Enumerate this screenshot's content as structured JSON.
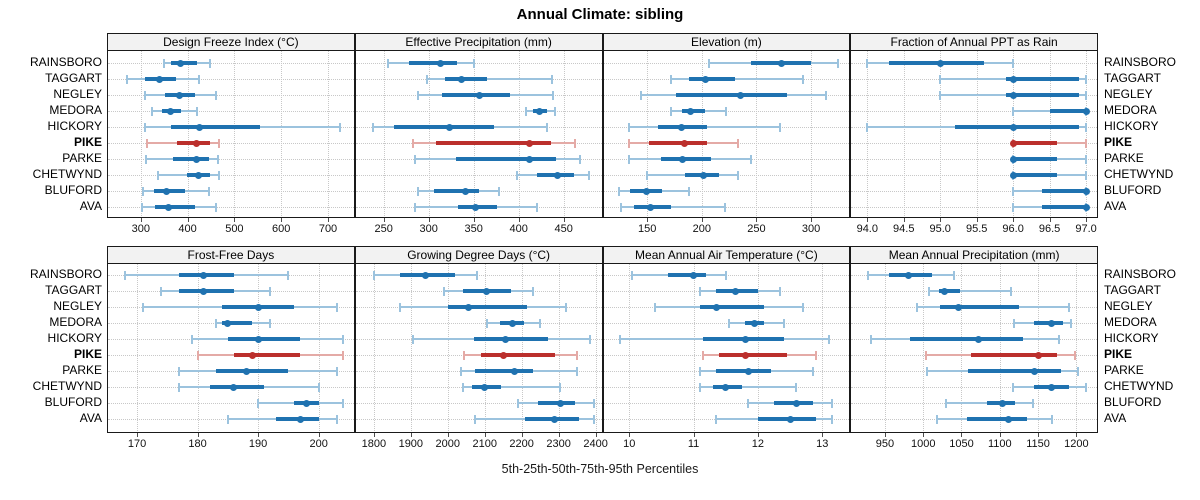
{
  "title": "Annual Climate: sibling",
  "caption": "5th-25th-50th-75th-95th Percentiles",
  "colors": {
    "normal": "#1f72b0",
    "normal_light": "#9cc3de",
    "highlight": "#bb2f2c",
    "highlight_light": "#e4aaa6",
    "panel_border": "#1a1a1a",
    "header_bg": "#f2f2f2",
    "gridline": "#c8c8c8",
    "tick": "#4d4d4d"
  },
  "chart_data": {
    "type": "errorbar",
    "orientation": "horizontal",
    "percentile_labels": [
      "5th",
      "25th",
      "50th",
      "75th",
      "95th"
    ],
    "sites": [
      "RAINSBORO",
      "TAGGART",
      "NEGLEY",
      "MEDORA",
      "HICKORY",
      "PIKE",
      "PARKE",
      "CHETWYND",
      "BLUFORD",
      "AVA"
    ],
    "highlight_site": "PIKE",
    "panels": [
      {
        "title": "Design Freeze Index (°C)",
        "xlim": [
          230,
          755
        ],
        "ticks": [
          300,
          400,
          500,
          600,
          700
        ],
        "tick_labels": [
          "300",
          "400",
          "500",
          "600",
          "700"
        ],
        "series": [
          [
            350,
            365,
            385,
            420,
            447
          ],
          [
            270,
            310,
            340,
            375,
            425
          ],
          [
            310,
            352,
            383,
            415,
            460
          ],
          [
            325,
            345,
            363,
            387,
            420
          ],
          [
            310,
            365,
            425,
            555,
            725
          ],
          [
            313,
            378,
            420,
            448,
            468
          ],
          [
            312,
            368,
            420,
            446,
            466
          ],
          [
            337,
            398,
            424,
            448,
            467
          ],
          [
            305,
            328,
            355,
            395,
            445
          ],
          [
            303,
            330,
            360,
            415,
            460
          ]
        ]
      },
      {
        "title": "Effective Precipitation (mm)",
        "xlim": [
          219,
          492
        ],
        "ticks": [
          250,
          300,
          350,
          400,
          450
        ],
        "tick_labels": [
          "250",
          "300",
          "350",
          "400",
          "450"
        ],
        "series": [
          [
            255,
            278,
            313,
            331,
            350
          ],
          [
            298,
            318,
            336,
            365,
            437
          ],
          [
            288,
            315,
            356,
            390,
            438
          ],
          [
            408,
            416,
            423,
            431,
            440
          ],
          [
            238,
            262,
            323,
            373,
            432
          ],
          [
            283,
            308,
            412,
            436,
            463
          ],
          [
            285,
            330,
            412,
            441,
            468
          ],
          [
            398,
            420,
            443,
            461,
            478
          ],
          [
            288,
            306,
            341,
            356,
            378
          ],
          [
            285,
            333,
            352,
            376,
            420
          ]
        ]
      },
      {
        "title": "Elevation (m)",
        "xlim": [
          110,
          335
        ],
        "ticks": [
          150,
          200,
          250,
          300
        ],
        "tick_labels": [
          "150",
          "200",
          "250",
          "300"
        ],
        "series": [
          [
            207,
            245,
            273,
            300,
            325
          ],
          [
            172,
            188,
            203,
            230,
            293
          ],
          [
            144,
            176,
            235,
            278,
            314
          ],
          [
            172,
            182,
            190,
            203,
            222
          ],
          [
            133,
            160,
            181,
            205,
            272
          ],
          [
            133,
            152,
            184,
            205,
            233
          ],
          [
            133,
            163,
            182,
            208,
            245
          ],
          [
            150,
            185,
            202,
            216,
            233
          ],
          [
            124,
            134,
            149,
            164,
            188
          ],
          [
            126,
            138,
            153,
            172,
            221
          ]
        ]
      },
      {
        "title": "Fraction of Annual PPT as Rain",
        "xlim": [
          93.78,
          97.15
        ],
        "ticks": [
          94.0,
          94.5,
          95.0,
          95.5,
          96.0,
          96.5,
          97.0
        ],
        "tick_labels": [
          "94.0",
          "94.5",
          "95.0",
          "95.5",
          "96.0",
          "96.5",
          "97.0"
        ],
        "series": [
          [
            94,
            94.3,
            95,
            95.6,
            96
          ],
          [
            95,
            95.9,
            96,
            96.9,
            97
          ],
          [
            95,
            95.9,
            96,
            96.9,
            97
          ],
          [
            96,
            96.5,
            97,
            97,
            97
          ],
          [
            94,
            95.2,
            96,
            96.9,
            97
          ],
          [
            96,
            96,
            96,
            96.6,
            97
          ],
          [
            96,
            96,
            96,
            96.6,
            97
          ],
          [
            96,
            96,
            96,
            96.6,
            97
          ],
          [
            96,
            96.4,
            97,
            97,
            97
          ],
          [
            96,
            96.4,
            97,
            97,
            97
          ]
        ]
      },
      {
        "title": "Frost-Free Days",
        "xlim": [
          165.2,
          205.8
        ],
        "ticks": [
          170,
          180,
          190,
          200
        ],
        "tick_labels": [
          "170",
          "180",
          "190",
          "200"
        ],
        "series": [
          [
            168,
            177,
            181,
            186,
            195
          ],
          [
            174,
            177,
            181,
            186,
            192
          ],
          [
            171,
            184,
            190,
            196,
            203
          ],
          [
            183,
            184,
            185,
            189,
            192
          ],
          [
            179,
            185,
            190,
            197,
            204
          ],
          [
            180,
            186,
            189,
            197,
            204
          ],
          [
            177,
            183,
            188,
            195,
            203
          ],
          [
            177,
            182,
            186,
            191,
            200
          ],
          [
            190,
            196,
            198,
            200,
            204
          ],
          [
            185,
            193,
            197,
            200,
            203
          ]
        ]
      },
      {
        "title": "Growing Degree Days (°C)",
        "xlim": [
          1751,
          2416
        ],
        "ticks": [
          1800,
          1900,
          2000,
          2100,
          2200,
          2300,
          2400
        ],
        "tick_labels": [
          "1800",
          "1900",
          "2000",
          "2100",
          "2200",
          "2300",
          "2400"
        ],
        "series": [
          [
            1800,
            1870,
            1940,
            2020,
            2080
          ],
          [
            1990,
            2040,
            2105,
            2170,
            2230
          ],
          [
            1870,
            2000,
            2055,
            2215,
            2320
          ],
          [
            2105,
            2140,
            2175,
            2205,
            2250
          ],
          [
            1905,
            2070,
            2155,
            2270,
            2385
          ],
          [
            2045,
            2090,
            2150,
            2290,
            2350
          ],
          [
            2035,
            2075,
            2180,
            2230,
            2350
          ],
          [
            2040,
            2065,
            2100,
            2145,
            2305
          ],
          [
            2190,
            2245,
            2305,
            2345,
            2395
          ],
          [
            2075,
            2210,
            2290,
            2355,
            2395
          ]
        ]
      },
      {
        "title": "Mean Annual Air Temperature (°C)",
        "xlim": [
          9.6,
          13.42
        ],
        "ticks": [
          10,
          11,
          12,
          13
        ],
        "tick_labels": [
          "10",
          "11",
          "12",
          "13"
        ],
        "series": [
          [
            10.05,
            10.6,
            11.0,
            11.2,
            11.5
          ],
          [
            11.1,
            11.35,
            11.65,
            12.0,
            12.35
          ],
          [
            10.4,
            11.1,
            11.35,
            12.1,
            12.7
          ],
          [
            11.55,
            11.8,
            11.95,
            12.1,
            12.4
          ],
          [
            9.85,
            11.15,
            11.8,
            12.4,
            13.1
          ],
          [
            11.15,
            11.4,
            11.8,
            12.45,
            12.9
          ],
          [
            11.1,
            11.35,
            11.85,
            12.2,
            12.85
          ],
          [
            11.1,
            11.3,
            11.5,
            11.75,
            12.6
          ],
          [
            11.85,
            12.25,
            12.6,
            12.85,
            13.15
          ],
          [
            11.35,
            12.0,
            12.5,
            12.9,
            13.15
          ]
        ]
      },
      {
        "title": "Mean Annual Precipitation (mm)",
        "xlim": [
          906,
          1227
        ],
        "ticks": [
          950,
          1000,
          1050,
          1100,
          1150,
          1200
        ],
        "tick_labels": [
          "950",
          "1000",
          "1050",
          "1100",
          "1150",
          "1200"
        ],
        "series": [
          [
            928,
            955,
            981,
            1012,
            1040
          ],
          [
            1008,
            1020,
            1028,
            1048,
            1115
          ],
          [
            992,
            1022,
            1046,
            1125,
            1190
          ],
          [
            1118,
            1145,
            1168,
            1182,
            1193
          ],
          [
            932,
            983,
            1072,
            1130,
            1178
          ],
          [
            1003,
            1063,
            1150,
            1175,
            1198
          ],
          [
            1005,
            1058,
            1146,
            1180,
            1202
          ],
          [
            1117,
            1145,
            1168,
            1190,
            1212
          ],
          [
            1030,
            1083,
            1103,
            1120,
            1143
          ],
          [
            1018,
            1057,
            1112,
            1135,
            1168
          ]
        ]
      }
    ]
  }
}
